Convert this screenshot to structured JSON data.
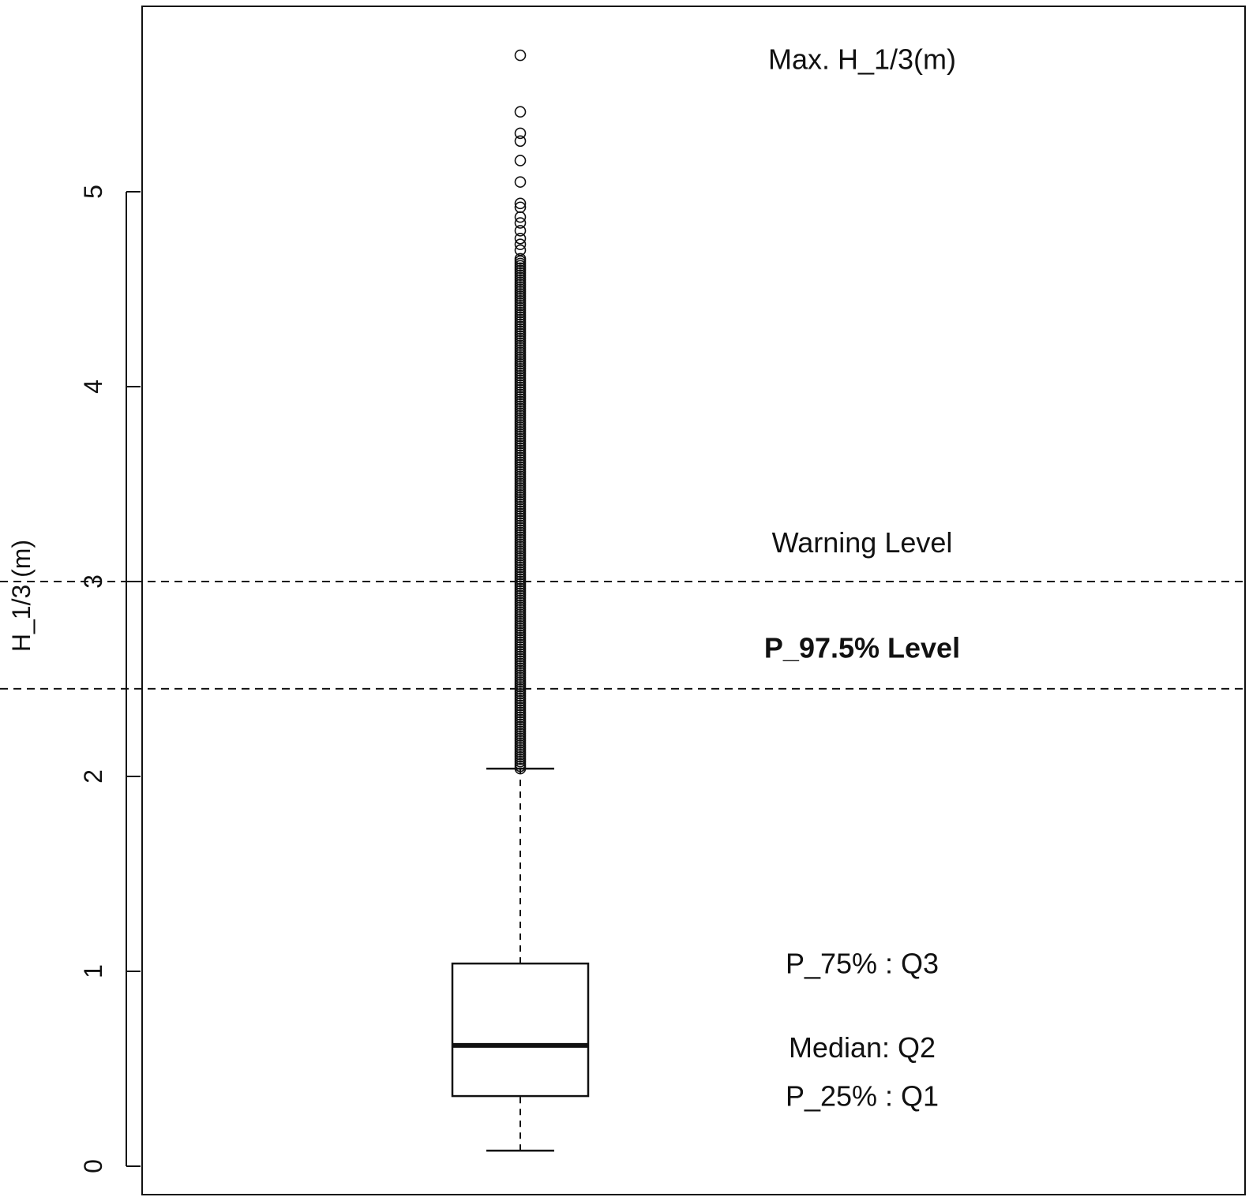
{
  "chart_data": {
    "type": "boxplot",
    "ylabel": "H_1/3 (m)",
    "ylim": [
      -0.1,
      5.95
    ],
    "yticks": [
      0,
      1,
      2,
      3,
      4,
      5
    ],
    "tick_labels": [
      "0",
      "1",
      "2",
      "3",
      "4",
      "5"
    ],
    "box": {
      "whisker_low": 0.08,
      "q1": 0.36,
      "median": 0.62,
      "q3": 1.04,
      "whisker_high": 2.04
    },
    "outliers": {
      "dense_range": [
        2.04,
        4.66
      ],
      "dense_step": 0.012,
      "sparse": [
        4.7,
        4.73,
        4.76,
        4.8,
        4.84,
        4.87,
        4.92,
        4.94,
        5.05,
        5.16,
        5.26,
        5.3,
        5.41,
        5.7
      ]
    },
    "reference_lines": [
      {
        "name": "Warning Level",
        "value": 3.0
      },
      {
        "name": "P_97.5% Level",
        "value": 2.45
      }
    ],
    "annotations": [
      {
        "text": "Max. H_1/3(m)",
        "value": 5.68,
        "bold": false
      },
      {
        "text": "Warning Level",
        "value": 3.2,
        "bold": false
      },
      {
        "text": "P_97.5% Level",
        "value": 2.66,
        "bold": true
      },
      {
        "text": "P_75% : Q3",
        "value": 1.04,
        "bold": false
      },
      {
        "text": "Median: Q2",
        "value": 0.61,
        "bold": false
      },
      {
        "text": "P_25% : Q1",
        "value": 0.36,
        "bold": false
      }
    ],
    "grid": false,
    "legend": "none"
  }
}
